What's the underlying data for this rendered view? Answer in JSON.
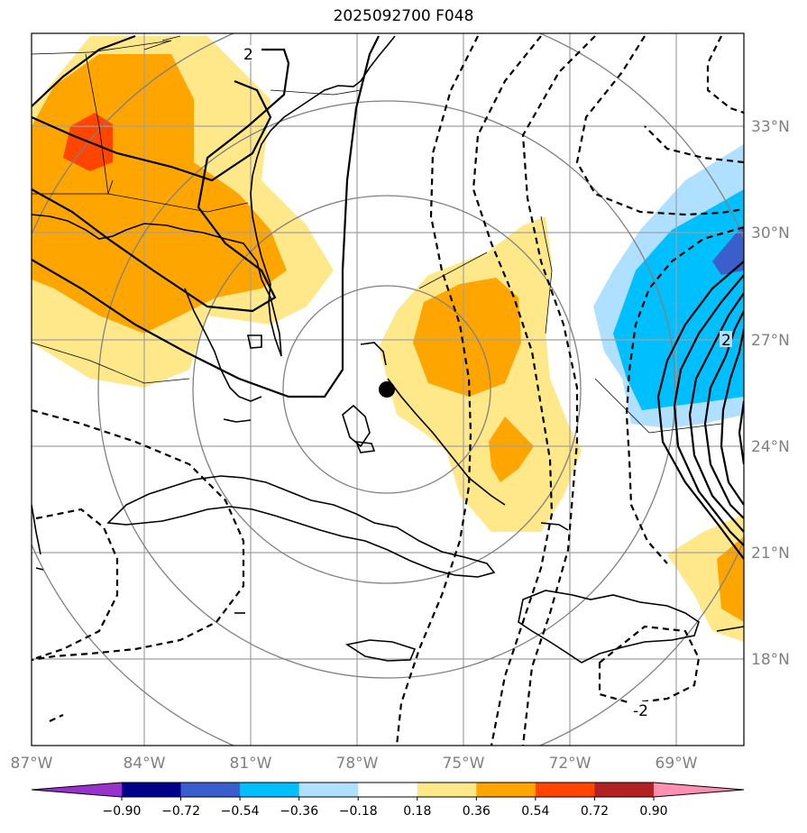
{
  "title": "2025092700 F048",
  "lon_ticks": [
    "87°W",
    "84°W",
    "81°W",
    "78°W",
    "75°W",
    "72°W",
    "69°W"
  ],
  "lat_ticks": [
    "18°N",
    "21°N",
    "24°N",
    "27°N",
    "30°N",
    "33°N"
  ],
  "contour_labels": [
    "2",
    "2",
    "-2"
  ],
  "colorbar": {
    "ticks": [
      "−0.90",
      "−0.72",
      "−0.54",
      "−0.36",
      "−0.18",
      "0.18",
      "0.36",
      "0.54",
      "0.72",
      "0.90"
    ],
    "colors": [
      "#9932cc",
      "#00008b",
      "#3a5fcd",
      "#00bfff",
      "#b0e0ff",
      "#ffffff",
      "#ffe88a",
      "#ffa500",
      "#ff4500",
      "#b22222",
      "#ff8fb3"
    ]
  },
  "storm_marker": {
    "name": "storm-center",
    "lon": -77.2,
    "lat": 25.6
  }
}
